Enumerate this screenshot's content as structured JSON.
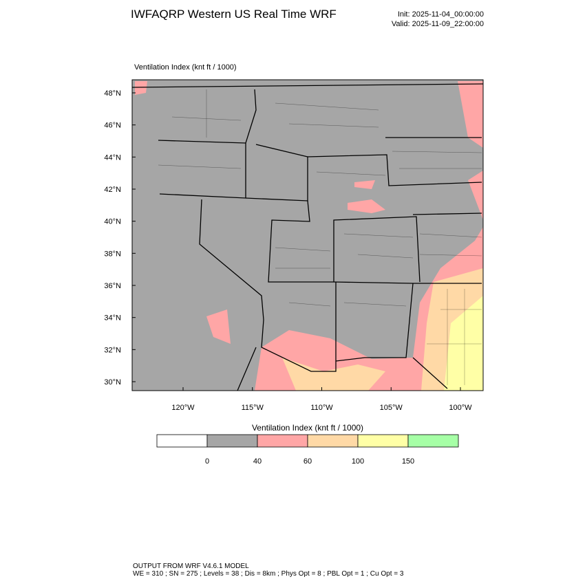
{
  "header": {
    "title": "IWFAQRP Western US Real Time WRF",
    "init": "Init: 2025-11-04_00:00:00",
    "valid": "Valid: 2025-11-09_22:00:00"
  },
  "map": {
    "label": "Ventilation Index   (knt ft / 1000)",
    "lat_ticks": [
      {
        "value": 48,
        "label": "48°N"
      },
      {
        "value": 46,
        "label": "46°N"
      },
      {
        "value": 44,
        "label": "44°N"
      },
      {
        "value": 42,
        "label": "42°N"
      },
      {
        "value": 40,
        "label": "40°N"
      },
      {
        "value": 38,
        "label": "38°N"
      },
      {
        "value": 36,
        "label": "36°N"
      },
      {
        "value": 34,
        "label": "34°N"
      },
      {
        "value": 32,
        "label": "32°N"
      },
      {
        "value": 30,
        "label": "30°N"
      }
    ],
    "lon_ticks": [
      {
        "value": -120,
        "label": "120°W"
      },
      {
        "value": -115,
        "label": "115°W"
      },
      {
        "value": -110,
        "label": "110°W"
      },
      {
        "value": -105,
        "label": "105°W"
      },
      {
        "value": -100,
        "label": "100°W"
      }
    ]
  },
  "colorbar": {
    "title": "Ventilation Index  (knt ft / 1000)",
    "levels": [
      0,
      40,
      60,
      100,
      150
    ],
    "colors": [
      "#ffffff",
      "#a6a6a6",
      "#ffa6a6",
      "#ffd9a6",
      "#ffffa6",
      "#a6ffa6"
    ]
  },
  "footer": {
    "line1": "OUTPUT FROM WRF V4.6.1 MODEL",
    "line2": "WE = 310 ; SN = 275 ; Levels = 38 ; Dis = 8km ; Phys Opt = 8 ; PBL Opt = 1 ; Cu Opt = 3"
  }
}
